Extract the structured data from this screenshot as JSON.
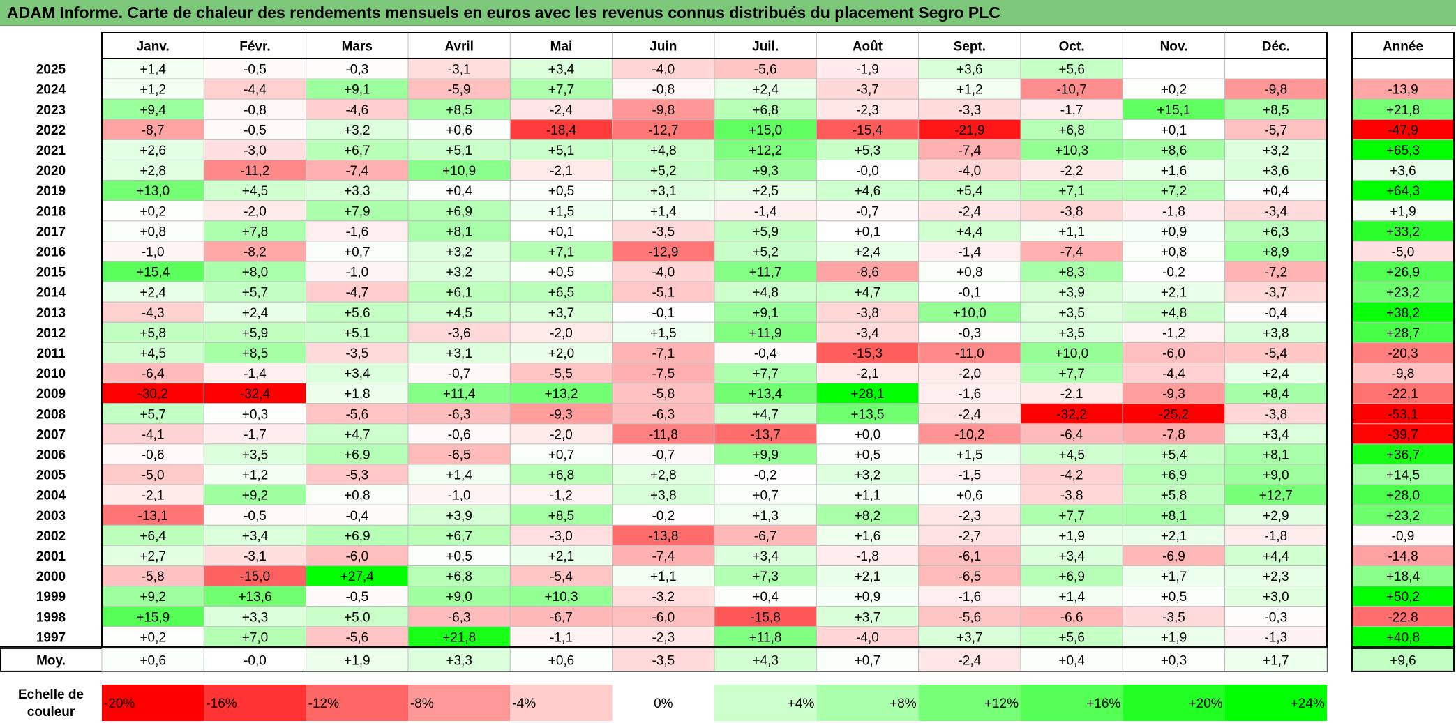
{
  "title": "ADAM Informe. Carte de chaleur des rendements mensuels en euros avec les revenus connus distribués du placement Segro PLC",
  "chart_data": {
    "type": "heatmap",
    "columns": [
      "Janv.",
      "Févr.",
      "Mars",
      "Avril",
      "Mai",
      "Juin",
      "Juil.",
      "Août",
      "Sept.",
      "Oct.",
      "Nov.",
      "Déc."
    ],
    "year_header": "Année",
    "rows": [
      {
        "label": "2025",
        "values": [
          "+1,4",
          "-0,5",
          "-0,3",
          "-3,1",
          "+3,4",
          "-4,0",
          "-5,6",
          "-1,9",
          "+3,6",
          "+5,6",
          "",
          ""
        ],
        "year": ""
      },
      {
        "label": "2024",
        "values": [
          "+1,2",
          "-4,4",
          "+9,1",
          "-5,9",
          "+7,7",
          "-0,8",
          "+2,4",
          "-3,7",
          "+1,2",
          "-10,7",
          "+0,2",
          "-9,8"
        ],
        "year": "-13,9"
      },
      {
        "label": "2023",
        "values": [
          "+9,4",
          "-0,8",
          "-4,6",
          "+8,5",
          "-2,4",
          "-9,8",
          "+6,8",
          "-2,3",
          "-3,3",
          "-1,7",
          "+15,1",
          "+8,5"
        ],
        "year": "+21,8"
      },
      {
        "label": "2022",
        "values": [
          "-8,7",
          "-0,5",
          "+3,2",
          "+0,6",
          "-18,4",
          "-12,7",
          "+15,0",
          "-15,4",
          "-21,9",
          "+6,8",
          "+0,1",
          "-5,7"
        ],
        "year": "-47,9"
      },
      {
        "label": "2021",
        "values": [
          "+2,6",
          "-3,0",
          "+6,7",
          "+5,1",
          "+5,1",
          "+4,8",
          "+12,2",
          "+5,3",
          "-7,4",
          "+10,3",
          "+8,6",
          "+3,2"
        ],
        "year": "+65,3"
      },
      {
        "label": "2020",
        "values": [
          "+2,8",
          "-11,2",
          "-7,4",
          "+10,9",
          "-2,1",
          "+5,2",
          "+9,3",
          "-0,0",
          "-4,0",
          "-2,2",
          "+1,6",
          "+3,6"
        ],
        "year": "+3,6"
      },
      {
        "label": "2019",
        "values": [
          "+13,0",
          "+4,5",
          "+3,3",
          "+0,4",
          "+0,5",
          "+3,1",
          "+2,5",
          "+4,6",
          "+5,4",
          "+7,1",
          "+7,2",
          "+0,4"
        ],
        "year": "+64,3"
      },
      {
        "label": "2018",
        "values": [
          "+0,2",
          "-2,0",
          "+7,9",
          "+6,9",
          "+1,5",
          "+1,4",
          "-1,4",
          "-0,7",
          "-2,4",
          "-3,8",
          "-1,8",
          "-3,4"
        ],
        "year": "+1,9"
      },
      {
        "label": "2017",
        "values": [
          "+0,8",
          "+7,8",
          "-1,6",
          "+8,1",
          "+0,1",
          "-3,5",
          "+5,9",
          "+0,1",
          "+4,4",
          "+1,1",
          "+0,9",
          "+6,3"
        ],
        "year": "+33,2"
      },
      {
        "label": "2016",
        "values": [
          "-1,0",
          "-8,2",
          "+0,7",
          "+3,2",
          "+7,1",
          "-12,9",
          "+5,2",
          "+2,4",
          "-1,4",
          "-7,4",
          "+0,8",
          "+8,9"
        ],
        "year": "-5,0"
      },
      {
        "label": "2015",
        "values": [
          "+15,4",
          "+8,0",
          "-1,0",
          "+3,2",
          "+0,5",
          "-4,0",
          "+11,7",
          "-8,6",
          "+0,8",
          "+8,3",
          "-0,2",
          "-7,2"
        ],
        "year": "+26,9"
      },
      {
        "label": "2014",
        "values": [
          "+2,4",
          "+5,7",
          "-4,7",
          "+6,1",
          "+6,5",
          "-5,1",
          "+4,8",
          "+4,7",
          "-0,1",
          "+3,9",
          "+2,1",
          "-3,7"
        ],
        "year": "+23,2"
      },
      {
        "label": "2013",
        "values": [
          "-4,3",
          "+2,4",
          "+5,6",
          "+4,5",
          "+3,7",
          "-0,1",
          "+9,1",
          "-3,8",
          "+10,0",
          "+3,5",
          "+4,8",
          "-0,4"
        ],
        "year": "+38,2"
      },
      {
        "label": "2012",
        "values": [
          "+5,8",
          "+5,9",
          "+5,1",
          "-3,6",
          "-2,0",
          "+1,5",
          "+11,9",
          "-3,4",
          "-0,3",
          "+3,5",
          "-1,2",
          "+3,8"
        ],
        "year": "+28,7"
      },
      {
        "label": "2011",
        "values": [
          "+4,5",
          "+8,5",
          "-3,5",
          "+3,1",
          "+2,0",
          "-7,1",
          "-0,4",
          "-15,3",
          "-11,0",
          "+10,0",
          "-6,0",
          "-5,4"
        ],
        "year": "-20,3"
      },
      {
        "label": "2010",
        "values": [
          "-6,4",
          "-1,4",
          "+3,4",
          "-0,7",
          "-5,5",
          "-7,5",
          "+7,7",
          "-2,1",
          "-2,0",
          "+7,7",
          "-4,4",
          "+2,4"
        ],
        "year": "-9,8"
      },
      {
        "label": "2009",
        "values": [
          "-30,2",
          "-32,4",
          "+1,8",
          "+11,4",
          "+13,2",
          "-5,8",
          "+13,4",
          "+28,1",
          "-1,6",
          "-2,1",
          "-9,3",
          "+8,4"
        ],
        "year": "-22,1"
      },
      {
        "label": "2008",
        "values": [
          "+5,7",
          "+0,3",
          "-5,6",
          "-6,3",
          "-9,3",
          "-6,3",
          "+4,7",
          "+13,5",
          "-2,4",
          "-32,2",
          "-25,2",
          "-3,8"
        ],
        "year": "-53,1"
      },
      {
        "label": "2007",
        "values": [
          "-4,1",
          "-1,7",
          "+4,7",
          "-0,6",
          "-2,0",
          "-11,8",
          "-13,7",
          "+0,0",
          "-10,2",
          "-6,4",
          "-7,8",
          "+3,4"
        ],
        "year": "-39,7"
      },
      {
        "label": "2006",
        "values": [
          "-0,6",
          "+3,5",
          "+6,9",
          "-6,5",
          "+0,7",
          "-0,7",
          "+9,9",
          "+0,5",
          "+1,5",
          "+4,5",
          "+5,4",
          "+8,1"
        ],
        "year": "+36,7"
      },
      {
        "label": "2005",
        "values": [
          "-5,0",
          "+1,2",
          "-5,3",
          "+1,4",
          "+6,8",
          "+2,8",
          "-0,2",
          "+3,2",
          "-1,5",
          "-4,2",
          "+6,9",
          "+9,0"
        ],
        "year": "+14,5"
      },
      {
        "label": "2004",
        "values": [
          "-2,1",
          "+9,2",
          "+0,8",
          "-1,0",
          "-1,2",
          "+3,8",
          "+0,7",
          "+1,1",
          "+0,6",
          "-3,8",
          "+5,8",
          "+12,7"
        ],
        "year": "+28,0"
      },
      {
        "label": "2003",
        "values": [
          "-13,1",
          "-0,5",
          "-0,4",
          "+3,9",
          "+8,5",
          "-0,2",
          "+1,3",
          "+8,2",
          "-2,3",
          "+7,7",
          "+8,1",
          "+2,9"
        ],
        "year": "+23,2"
      },
      {
        "label": "2002",
        "values": [
          "+6,4",
          "+3,4",
          "+6,9",
          "+6,7",
          "-3,0",
          "-13,8",
          "-6,7",
          "+1,6",
          "-2,7",
          "+1,9",
          "+2,1",
          "-1,8"
        ],
        "year": "-0,9"
      },
      {
        "label": "2001",
        "values": [
          "+2,7",
          "-3,1",
          "-6,0",
          "+0,5",
          "+2,1",
          "-7,4",
          "+3,4",
          "-1,8",
          "-6,1",
          "+3,4",
          "-6,9",
          "+4,4"
        ],
        "year": "-14,8"
      },
      {
        "label": "2000",
        "values": [
          "-5,8",
          "-15,0",
          "+27,4",
          "+6,8",
          "-5,4",
          "+1,1",
          "+7,3",
          "+2,1",
          "-6,5",
          "+6,9",
          "+1,7",
          "+2,3"
        ],
        "year": "+18,4"
      },
      {
        "label": "1999",
        "values": [
          "+9,2",
          "+13,6",
          "-0,5",
          "+9,0",
          "+10,3",
          "-3,2",
          "+0,4",
          "+0,9",
          "-1,6",
          "+1,4",
          "+0,5",
          "+3,0"
        ],
        "year": "+50,2"
      },
      {
        "label": "1998",
        "values": [
          "+15,9",
          "+3,3",
          "+5,0",
          "-6,3",
          "-6,7",
          "-6,0",
          "-15,8",
          "+3,7",
          "-5,6",
          "-6,6",
          "-3,5",
          "-0,3"
        ],
        "year": "-22,8"
      },
      {
        "label": "1997",
        "values": [
          "+0,2",
          "+7,0",
          "-5,6",
          "+21,8",
          "-1,1",
          "-2,3",
          "+11,8",
          "-4,0",
          "+3,7",
          "+5,6",
          "+1,9",
          "-1,3"
        ],
        "year": "+40,8"
      }
    ],
    "average": {
      "label": "Moy.",
      "values": [
        "+0,6",
        "-0,0",
        "+1,9",
        "+3,3",
        "+0,6",
        "-3,5",
        "+4,3",
        "+0,7",
        "-2,4",
        "+0,4",
        "+0,3",
        "+1,7"
      ],
      "year": "+9,6"
    },
    "scale": {
      "label_lines": [
        "Echelle de",
        "couleur"
      ],
      "steps": [
        {
          "label": "-20%",
          "value": -20,
          "color": "#ff0000"
        },
        {
          "label": "-16%",
          "value": -16,
          "color": "#ff3333"
        },
        {
          "label": "-12%",
          "value": -12,
          "color": "#ff6666"
        },
        {
          "label": "-8%",
          "value": -8,
          "color": "#ff9999"
        },
        {
          "label": "-4%",
          "value": -4,
          "color": "#ffcccc"
        },
        {
          "label": "0%",
          "value": 0,
          "color": "#ffffff"
        },
        {
          "label": "+4%",
          "value": 4,
          "color": "#ccffcc"
        },
        {
          "label": "+8%",
          "value": 8,
          "color": "#aaffaa"
        },
        {
          "label": "+12%",
          "value": 12,
          "color": "#77ff77"
        },
        {
          "label": "+16%",
          "value": 16,
          "color": "#55ff55"
        },
        {
          "label": "+20%",
          "value": 20,
          "color": "#22ff22"
        },
        {
          "label": "+24%",
          "value": 24,
          "color": "#00ff00"
        }
      ]
    },
    "colors": {
      "header_bg": "#7cc77a",
      "negative_max": "#ff0000",
      "positive_max": "#00ff00",
      "neutral": "#ffffff"
    }
  }
}
